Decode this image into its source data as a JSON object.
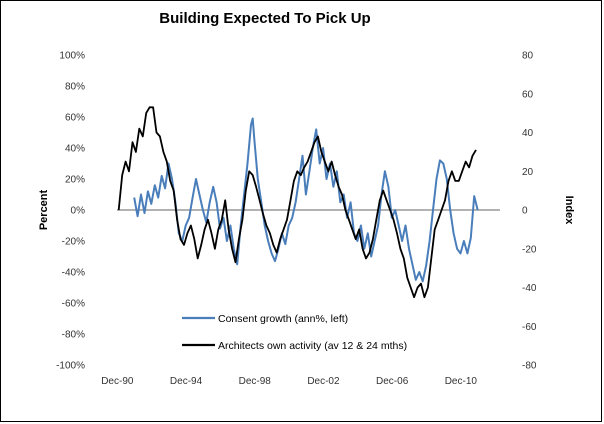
{
  "chart_data": {
    "type": "line",
    "title": "Building Expected To Pick Up",
    "ylabel_left": "Percent",
    "ylabel_right": "Index",
    "ylim_left": [
      -100,
      100
    ],
    "ylim_right": [
      -80,
      80
    ],
    "yticks_left": [
      "100%",
      "80%",
      "60%",
      "40%",
      "20%",
      "0%",
      "-20%",
      "-40%",
      "-60%",
      "-80%",
      "-100%"
    ],
    "yticks_right": [
      "80",
      "60",
      "40",
      "20",
      "0",
      "-20",
      "-40",
      "-60",
      "-80"
    ],
    "xticks": [
      "Dec-90",
      "Dec-94",
      "Dec-98",
      "Dec-02",
      "Dec-06",
      "Dec-10"
    ],
    "xlim": [
      1990.9,
      2013.2
    ],
    "legend_position": "bottom-center",
    "grid": false,
    "series": [
      {
        "name": "Consent growth (ann%, left)",
        "axis": "left",
        "color": "#4a7ebb",
        "points": [
          [
            1991.9,
            8
          ],
          [
            1992.1,
            -4
          ],
          [
            1992.3,
            10
          ],
          [
            1992.5,
            -2
          ],
          [
            1992.7,
            12
          ],
          [
            1992.9,
            4
          ],
          [
            1993.1,
            16
          ],
          [
            1993.3,
            8
          ],
          [
            1993.5,
            22
          ],
          [
            1993.7,
            14
          ],
          [
            1993.9,
            30
          ],
          [
            1994.1,
            20
          ],
          [
            1994.3,
            5
          ],
          [
            1994.5,
            -15
          ],
          [
            1994.7,
            -20
          ],
          [
            1994.9,
            -10
          ],
          [
            1995.1,
            -5
          ],
          [
            1995.3,
            8
          ],
          [
            1995.5,
            20
          ],
          [
            1995.7,
            10
          ],
          [
            1995.9,
            0
          ],
          [
            1996.1,
            -8
          ],
          [
            1996.3,
            5
          ],
          [
            1996.5,
            15
          ],
          [
            1996.7,
            5
          ],
          [
            1996.9,
            -12
          ],
          [
            1997.1,
            -5
          ],
          [
            1997.3,
            -20
          ],
          [
            1997.5,
            -10
          ],
          [
            1997.7,
            -25
          ],
          [
            1997.9,
            -35
          ],
          [
            1998.1,
            -10
          ],
          [
            1998.3,
            10
          ],
          [
            1998.5,
            30
          ],
          [
            1998.7,
            55
          ],
          [
            1998.8,
            59
          ],
          [
            1998.9,
            45
          ],
          [
            1999.1,
            20
          ],
          [
            1999.3,
            5
          ],
          [
            1999.5,
            -10
          ],
          [
            1999.7,
            -20
          ],
          [
            1999.9,
            -28
          ],
          [
            2000.1,
            -33
          ],
          [
            2000.3,
            -25
          ],
          [
            2000.5,
            -15
          ],
          [
            2000.7,
            -22
          ],
          [
            2000.9,
            -10
          ],
          [
            2001.1,
            -5
          ],
          [
            2001.3,
            5
          ],
          [
            2001.5,
            20
          ],
          [
            2001.7,
            35
          ],
          [
            2001.9,
            10
          ],
          [
            2002.1,
            25
          ],
          [
            2002.3,
            40
          ],
          [
            2002.5,
            52
          ],
          [
            2002.7,
            30
          ],
          [
            2002.9,
            40
          ],
          [
            2003.1,
            20
          ],
          [
            2003.3,
            30
          ],
          [
            2003.5,
            15
          ],
          [
            2003.7,
            25
          ],
          [
            2003.9,
            5
          ],
          [
            2004.1,
            10
          ],
          [
            2004.3,
            -5
          ],
          [
            2004.5,
            5
          ],
          [
            2004.7,
            -15
          ],
          [
            2004.9,
            -20
          ],
          [
            2005.1,
            -10
          ],
          [
            2005.3,
            -25
          ],
          [
            2005.5,
            -15
          ],
          [
            2005.7,
            -30
          ],
          [
            2005.9,
            -20
          ],
          [
            2006.1,
            -10
          ],
          [
            2006.3,
            10
          ],
          [
            2006.5,
            25
          ],
          [
            2006.7,
            15
          ],
          [
            2006.9,
            -5
          ],
          [
            2007.1,
            0
          ],
          [
            2007.3,
            -10
          ],
          [
            2007.5,
            -20
          ],
          [
            2007.7,
            -10
          ],
          [
            2007.9,
            -25
          ],
          [
            2008.1,
            -35
          ],
          [
            2008.3,
            -45
          ],
          [
            2008.5,
            -40
          ],
          [
            2008.7,
            -46
          ],
          [
            2008.9,
            -36
          ],
          [
            2009.1,
            -20
          ],
          [
            2009.3,
            0
          ],
          [
            2009.5,
            20
          ],
          [
            2009.7,
            32
          ],
          [
            2009.9,
            30
          ],
          [
            2010.1,
            20
          ],
          [
            2010.3,
            0
          ],
          [
            2010.5,
            -15
          ],
          [
            2010.7,
            -25
          ],
          [
            2010.9,
            -28
          ],
          [
            2011.1,
            -20
          ],
          [
            2011.3,
            -28
          ],
          [
            2011.5,
            -18
          ],
          [
            2011.7,
            9
          ],
          [
            2011.9,
            0
          ]
        ]
      },
      {
        "name": "Architects own activity (av 12 & 24 mths)",
        "axis": "right",
        "color": "#000000",
        "points": [
          [
            1991.0,
            0
          ],
          [
            1991.2,
            18
          ],
          [
            1991.4,
            25
          ],
          [
            1991.6,
            20
          ],
          [
            1991.8,
            35
          ],
          [
            1992.0,
            30
          ],
          [
            1992.2,
            42
          ],
          [
            1992.4,
            38
          ],
          [
            1992.6,
            50
          ],
          [
            1992.8,
            53
          ],
          [
            1993.0,
            53
          ],
          [
            1993.2,
            40
          ],
          [
            1993.4,
            38
          ],
          [
            1993.6,
            30
          ],
          [
            1993.8,
            25
          ],
          [
            1994.0,
            15
          ],
          [
            1994.2,
            10
          ],
          [
            1994.4,
            -5
          ],
          [
            1994.6,
            -15
          ],
          [
            1994.8,
            -18
          ],
          [
            1995.0,
            -12
          ],
          [
            1995.2,
            -8
          ],
          [
            1995.4,
            -15
          ],
          [
            1995.6,
            -25
          ],
          [
            1995.8,
            -18
          ],
          [
            1996.0,
            -10
          ],
          [
            1996.2,
            -5
          ],
          [
            1996.4,
            -12
          ],
          [
            1996.6,
            -20
          ],
          [
            1996.8,
            -10
          ],
          [
            1997.0,
            -5
          ],
          [
            1997.2,
            5
          ],
          [
            1997.4,
            -10
          ],
          [
            1997.6,
            -20
          ],
          [
            1997.8,
            -27
          ],
          [
            1998.0,
            -15
          ],
          [
            1998.2,
            -5
          ],
          [
            1998.4,
            10
          ],
          [
            1998.6,
            20
          ],
          [
            1998.8,
            18
          ],
          [
            1999.0,
            12
          ],
          [
            1999.2,
            5
          ],
          [
            1999.4,
            -2
          ],
          [
            1999.6,
            -8
          ],
          [
            1999.8,
            -12
          ],
          [
            2000.0,
            -18
          ],
          [
            2000.2,
            -22
          ],
          [
            2000.4,
            -15
          ],
          [
            2000.6,
            -10
          ],
          [
            2000.8,
            -5
          ],
          [
            2001.0,
            5
          ],
          [
            2001.2,
            15
          ],
          [
            2001.4,
            20
          ],
          [
            2001.6,
            18
          ],
          [
            2001.8,
            22
          ],
          [
            2002.0,
            25
          ],
          [
            2002.2,
            30
          ],
          [
            2002.4,
            35
          ],
          [
            2002.6,
            38
          ],
          [
            2002.8,
            30
          ],
          [
            2003.0,
            25
          ],
          [
            2003.2,
            20
          ],
          [
            2003.4,
            25
          ],
          [
            2003.6,
            18
          ],
          [
            2003.8,
            12
          ],
          [
            2004.0,
            8
          ],
          [
            2004.2,
            0
          ],
          [
            2004.4,
            -5
          ],
          [
            2004.6,
            -10
          ],
          [
            2004.8,
            -15
          ],
          [
            2005.0,
            -10
          ],
          [
            2005.2,
            -20
          ],
          [
            2005.4,
            -25
          ],
          [
            2005.6,
            -22
          ],
          [
            2005.8,
            -15
          ],
          [
            2006.0,
            -5
          ],
          [
            2006.2,
            5
          ],
          [
            2006.4,
            10
          ],
          [
            2006.6,
            5
          ],
          [
            2006.8,
            0
          ],
          [
            2007.0,
            -5
          ],
          [
            2007.2,
            -12
          ],
          [
            2007.4,
            -20
          ],
          [
            2007.6,
            -25
          ],
          [
            2007.8,
            -35
          ],
          [
            2008.0,
            -40
          ],
          [
            2008.2,
            -45
          ],
          [
            2008.4,
            -40
          ],
          [
            2008.6,
            -38
          ],
          [
            2008.8,
            -45
          ],
          [
            2009.0,
            -40
          ],
          [
            2009.2,
            -25
          ],
          [
            2009.4,
            -10
          ],
          [
            2009.6,
            -5
          ],
          [
            2009.8,
            0
          ],
          [
            2010.0,
            5
          ],
          [
            2010.2,
            15
          ],
          [
            2010.4,
            20
          ],
          [
            2010.6,
            15
          ],
          [
            2010.8,
            15
          ],
          [
            2011.0,
            20
          ],
          [
            2011.2,
            25
          ],
          [
            2011.4,
            22
          ],
          [
            2011.6,
            28
          ],
          [
            2011.8,
            31
          ]
        ]
      }
    ]
  }
}
